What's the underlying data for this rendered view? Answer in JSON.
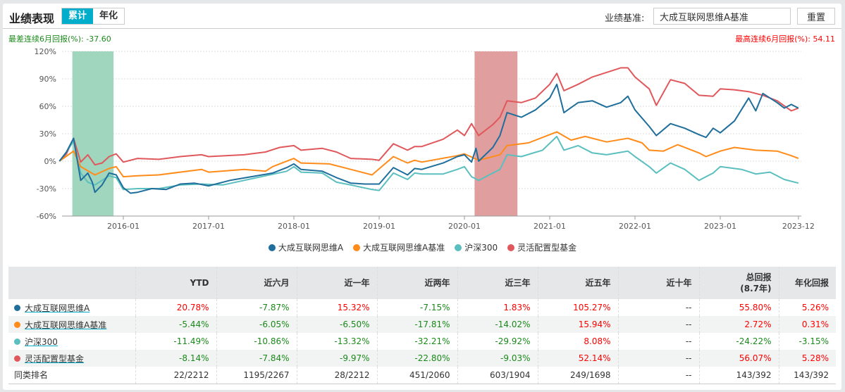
{
  "header": {
    "title": "业绩表现",
    "tabs": [
      "累计",
      "年化"
    ],
    "benchmark_label": "业绩基准:",
    "benchmark_value": "大成互联网思维A基准",
    "reset_label": "重置"
  },
  "stats": {
    "worst_label": "最差连续6月回报(%):",
    "worst_value": "-37.60",
    "best_label": "最高连续6月回报(%):",
    "best_value": "54.11"
  },
  "chart_data": {
    "type": "line",
    "ylim": [
      -60,
      120
    ],
    "yticks": [
      "120%",
      "90%",
      "60%",
      "30%",
      "0%",
      "-30%",
      "-60%"
    ],
    "ytick_values": [
      120,
      90,
      60,
      30,
      0,
      -30,
      -60
    ],
    "xticks": [
      "2016-01",
      "2017-01",
      "2018-01",
      "2019-01",
      "2020-01",
      "2021-01",
      "2022-01",
      "2023-01",
      "2023-12"
    ],
    "grid": true,
    "legend": "bottom",
    "shaded_ranges": [
      {
        "from": "2015-05-26",
        "to": "2015-11-20",
        "color": "#9fd6bd"
      },
      {
        "from": "2020-02-14",
        "to": "2020-08-15",
        "color": "#e09e9e"
      }
    ],
    "series": [
      {
        "name": "大成互联网思维A",
        "color": "#1f6e9c",
        "points": [
          [
            "2015-04",
            0
          ],
          [
            "2015-05",
            10
          ],
          [
            "2015-06",
            25
          ],
          [
            "2015-07",
            -21
          ],
          [
            "2015-08",
            -13
          ],
          [
            "2015-08-20",
            -23
          ],
          [
            "2015-09",
            -34
          ],
          [
            "2015-10",
            -26
          ],
          [
            "2015-11",
            -13
          ],
          [
            "2015-12",
            -15
          ],
          [
            "2016-01",
            -29
          ],
          [
            "2016-02",
            -35
          ],
          [
            "2016-03",
            -34
          ],
          [
            "2016-05",
            -30
          ],
          [
            "2016-07",
            -31
          ],
          [
            "2016-09",
            -25
          ],
          [
            "2016-11",
            -24
          ],
          [
            "2017-01",
            -27
          ],
          [
            "2017-04",
            -21
          ],
          [
            "2017-07",
            -17
          ],
          [
            "2017-10",
            -13
          ],
          [
            "2017-12",
            -7
          ],
          [
            "2018-01",
            -3
          ],
          [
            "2018-02",
            -9
          ],
          [
            "2018-05",
            -11
          ],
          [
            "2018-07",
            -18
          ],
          [
            "2018-09",
            -24
          ],
          [
            "2018-11",
            -25
          ],
          [
            "2019-01",
            -25
          ],
          [
            "2019-03",
            -7
          ],
          [
            "2019-05",
            -15
          ],
          [
            "2019-06",
            -8
          ],
          [
            "2019-07",
            -9
          ],
          [
            "2019-10",
            -2
          ],
          [
            "2019-12",
            5
          ],
          [
            "2020-01",
            7
          ],
          [
            "2020-02",
            -1
          ],
          [
            "2020-02-20",
            14
          ],
          [
            "2020-03",
            0
          ],
          [
            "2020-05",
            15
          ],
          [
            "2020-06",
            28
          ],
          [
            "2020-07",
            53
          ],
          [
            "2020-09",
            48
          ],
          [
            "2020-11",
            56
          ],
          [
            "2021-01",
            69
          ],
          [
            "2021-02",
            84
          ],
          [
            "2021-03",
            53
          ],
          [
            "2021-05",
            64
          ],
          [
            "2021-07",
            66
          ],
          [
            "2021-09",
            59
          ],
          [
            "2021-11",
            64
          ],
          [
            "2021-12",
            71
          ],
          [
            "2022-01",
            56
          ],
          [
            "2022-03",
            38
          ],
          [
            "2022-04",
            28
          ],
          [
            "2022-06",
            41
          ],
          [
            "2022-08",
            36
          ],
          [
            "2022-10",
            29
          ],
          [
            "2022-11",
            26
          ],
          [
            "2022-12",
            36
          ],
          [
            "2023-01",
            31
          ],
          [
            "2023-03",
            44
          ],
          [
            "2023-05",
            69
          ],
          [
            "2023-06",
            55
          ],
          [
            "2023-07",
            74
          ],
          [
            "2023-09",
            64
          ],
          [
            "2023-10",
            58
          ],
          [
            "2023-11",
            62
          ],
          [
            "2023-12",
            58
          ]
        ]
      },
      {
        "name": "大成互联网思维A基准",
        "color": "#ff8c1a",
        "points": [
          [
            "2015-04",
            0
          ],
          [
            "2015-06",
            11
          ],
          [
            "2015-07",
            -6
          ],
          [
            "2015-09",
            -15
          ],
          [
            "2015-11",
            -8
          ],
          [
            "2015-12",
            -6
          ],
          [
            "2016-01",
            -17
          ],
          [
            "2016-03",
            -16
          ],
          [
            "2016-06",
            -15
          ],
          [
            "2016-09",
            -12
          ],
          [
            "2016-12",
            -9
          ],
          [
            "2017-01",
            -12
          ],
          [
            "2017-06",
            -9
          ],
          [
            "2017-09",
            -11
          ],
          [
            "2017-10",
            -6
          ],
          [
            "2018-01",
            3
          ],
          [
            "2018-02",
            -2
          ],
          [
            "2018-06",
            -3
          ],
          [
            "2018-09",
            -9
          ],
          [
            "2018-12",
            -15
          ],
          [
            "2019-03",
            5
          ],
          [
            "2019-05",
            -2
          ],
          [
            "2019-06",
            1
          ],
          [
            "2019-07",
            -1
          ],
          [
            "2019-12",
            6
          ],
          [
            "2020-01",
            8
          ],
          [
            "2020-03",
            1
          ],
          [
            "2020-06",
            7
          ],
          [
            "2020-07",
            17
          ],
          [
            "2020-10",
            20
          ],
          [
            "2021-01",
            29
          ],
          [
            "2021-02",
            32
          ],
          [
            "2021-04",
            23
          ],
          [
            "2021-06",
            27
          ],
          [
            "2021-09",
            21
          ],
          [
            "2021-12",
            25
          ],
          [
            "2022-02",
            20
          ],
          [
            "2022-03",
            12
          ],
          [
            "2022-05",
            11
          ],
          [
            "2022-07",
            18
          ],
          [
            "2022-10",
            9
          ],
          [
            "2022-11",
            5
          ],
          [
            "2023-01",
            11
          ],
          [
            "2023-03",
            15
          ],
          [
            "2023-06",
            12
          ],
          [
            "2023-09",
            11
          ],
          [
            "2023-11",
            6
          ],
          [
            "2023-12",
            3
          ]
        ]
      },
      {
        "name": "沪深300",
        "color": "#5bbfbf",
        "points": [
          [
            "2015-04",
            0
          ],
          [
            "2015-05",
            10
          ],
          [
            "2015-06",
            22
          ],
          [
            "2015-07",
            -13
          ],
          [
            "2015-08",
            -23
          ],
          [
            "2015-09",
            -26
          ],
          [
            "2015-11",
            -16
          ],
          [
            "2015-12",
            -18
          ],
          [
            "2016-01",
            -31
          ],
          [
            "2016-03",
            -30
          ],
          [
            "2016-06",
            -30
          ],
          [
            "2016-09",
            -26
          ],
          [
            "2016-12",
            -25
          ],
          [
            "2017-03",
            -26
          ],
          [
            "2017-06",
            -21
          ],
          [
            "2017-09",
            -16
          ],
          [
            "2017-12",
            -11
          ],
          [
            "2018-01",
            -6
          ],
          [
            "2018-02",
            -12
          ],
          [
            "2018-05",
            -13
          ],
          [
            "2018-07",
            -23
          ],
          [
            "2018-09",
            -26
          ],
          [
            "2018-12",
            -31
          ],
          [
            "2019-01",
            -32
          ],
          [
            "2019-03",
            -13
          ],
          [
            "2019-05",
            -20
          ],
          [
            "2019-06",
            -13
          ],
          [
            "2019-07",
            -14
          ],
          [
            "2019-10",
            -14
          ],
          [
            "2019-12",
            -9
          ],
          [
            "2020-01",
            -6
          ],
          [
            "2020-02",
            -17
          ],
          [
            "2020-03",
            -21
          ],
          [
            "2020-05",
            -13
          ],
          [
            "2020-06",
            -9
          ],
          [
            "2020-07",
            7
          ],
          [
            "2020-09",
            5
          ],
          [
            "2020-12",
            12
          ],
          [
            "2021-02",
            27
          ],
          [
            "2021-03",
            12
          ],
          [
            "2021-05",
            17
          ],
          [
            "2021-07",
            9
          ],
          [
            "2021-09",
            7
          ],
          [
            "2021-12",
            11
          ],
          [
            "2022-01",
            5
          ],
          [
            "2022-03",
            -6
          ],
          [
            "2022-04",
            -13
          ],
          [
            "2022-06",
            -2
          ],
          [
            "2022-08",
            -9
          ],
          [
            "2022-10",
            -21
          ],
          [
            "2022-12",
            -13
          ],
          [
            "2023-01",
            -6
          ],
          [
            "2023-04",
            -9
          ],
          [
            "2023-06",
            -14
          ],
          [
            "2023-08",
            -12
          ],
          [
            "2023-10",
            -20
          ],
          [
            "2023-12",
            -24
          ]
        ]
      },
      {
        "name": "灵活配置型基金",
        "color": "#e0585c",
        "points": [
          [
            "2015-04",
            0
          ],
          [
            "2015-05",
            8
          ],
          [
            "2015-06",
            25
          ],
          [
            "2015-07",
            -1
          ],
          [
            "2015-08",
            7
          ],
          [
            "2015-09",
            -4
          ],
          [
            "2015-10",
            -2
          ],
          [
            "2015-11",
            5
          ],
          [
            "2015-12",
            8
          ],
          [
            "2016-01",
            -1
          ],
          [
            "2016-03",
            3
          ],
          [
            "2016-06",
            2
          ],
          [
            "2016-09",
            5
          ],
          [
            "2016-12",
            7
          ],
          [
            "2017-01",
            5
          ],
          [
            "2017-06",
            7
          ],
          [
            "2017-09",
            10
          ],
          [
            "2017-11",
            15
          ],
          [
            "2018-01",
            17
          ],
          [
            "2018-02",
            12
          ],
          [
            "2018-05",
            14
          ],
          [
            "2018-07",
            10
          ],
          [
            "2018-09",
            3
          ],
          [
            "2018-12",
            2
          ],
          [
            "2019-01",
            1
          ],
          [
            "2019-03",
            19
          ],
          [
            "2019-05",
            12
          ],
          [
            "2019-06",
            16
          ],
          [
            "2019-07",
            16
          ],
          [
            "2019-10",
            24
          ],
          [
            "2019-12",
            34
          ],
          [
            "2020-01",
            28
          ],
          [
            "2020-02",
            41
          ],
          [
            "2020-03",
            28
          ],
          [
            "2020-05",
            40
          ],
          [
            "2020-06",
            48
          ],
          [
            "2020-07",
            66
          ],
          [
            "2020-09",
            64
          ],
          [
            "2020-11",
            69
          ],
          [
            "2021-01",
            84
          ],
          [
            "2021-02",
            96
          ],
          [
            "2021-03",
            77
          ],
          [
            "2021-05",
            84
          ],
          [
            "2021-07",
            92
          ],
          [
            "2021-09",
            97
          ],
          [
            "2021-11",
            102
          ],
          [
            "2021-12",
            102
          ],
          [
            "2022-01",
            92
          ],
          [
            "2022-03",
            79
          ],
          [
            "2022-04",
            61
          ],
          [
            "2022-06",
            89
          ],
          [
            "2022-08",
            85
          ],
          [
            "2022-10",
            72
          ],
          [
            "2022-12",
            71
          ],
          [
            "2023-01",
            79
          ],
          [
            "2023-03",
            78
          ],
          [
            "2023-05",
            76
          ],
          [
            "2023-07",
            72
          ],
          [
            "2023-09",
            66
          ],
          [
            "2023-11",
            55
          ],
          [
            "2023-12",
            58
          ]
        ]
      }
    ]
  },
  "table": {
    "headers": [
      "",
      "YTD",
      "近六月",
      "近一年",
      "近两年",
      "近三年",
      "近五年",
      "近十年",
      "总回报",
      "(8.7年)",
      "年化回报"
    ],
    "rows": [
      {
        "name": "大成互联网思维A",
        "color": "#1f6e9c",
        "values": [
          "20.78%",
          "-7.87%",
          "15.32%",
          "-7.15%",
          "1.83%",
          "105.27%",
          "--",
          "55.80%",
          "5.26%"
        ]
      },
      {
        "name": "大成互联网思维A基准",
        "color": "#ff8c1a",
        "values": [
          "-5.44%",
          "-6.05%",
          "-6.50%",
          "-17.81%",
          "-14.02%",
          "15.94%",
          "--",
          "2.72%",
          "0.31%"
        ]
      },
      {
        "name": "沪深300",
        "color": "#5bbfbf",
        "values": [
          "-11.49%",
          "-10.86%",
          "-13.32%",
          "-32.21%",
          "-29.92%",
          "8.08%",
          "--",
          "-24.22%",
          "-3.15%"
        ]
      },
      {
        "name": "灵活配置型基金",
        "color": "#e0585c",
        "values": [
          "-8.14%",
          "-7.84%",
          "-9.97%",
          "-22.80%",
          "-9.03%",
          "52.14%",
          "--",
          "56.07%",
          "5.28%"
        ]
      }
    ],
    "rank": {
      "name": "同类排名",
      "values": [
        "22/2212",
        "1195/2267",
        "28/2212",
        "451/2060",
        "603/1904",
        "249/1698",
        "--",
        "143/392",
        "143/392"
      ]
    }
  }
}
